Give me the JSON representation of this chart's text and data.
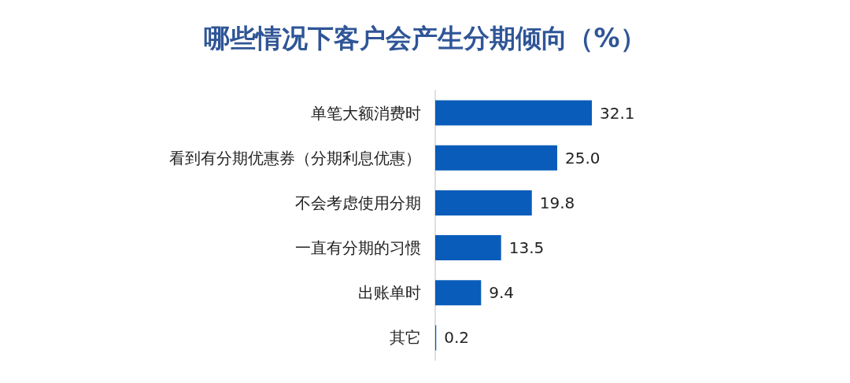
{
  "chart_data": {
    "type": "bar",
    "orientation": "horizontal",
    "title": "哪些情况下客户会产生分期倾向（%）",
    "categories": [
      "单笔大额消费时",
      "看到有分期优惠券（分期利息优惠）",
      "不会考虑使用分期",
      "一直有分期的习惯",
      "出账单时",
      "其它"
    ],
    "values": [
      32.1,
      25.0,
      19.8,
      13.5,
      9.4,
      0.2
    ],
    "value_labels": [
      "32.1",
      "25.0",
      "19.8",
      "13.5",
      "9.4",
      "0.2"
    ],
    "color": "#0a5cba"
  }
}
